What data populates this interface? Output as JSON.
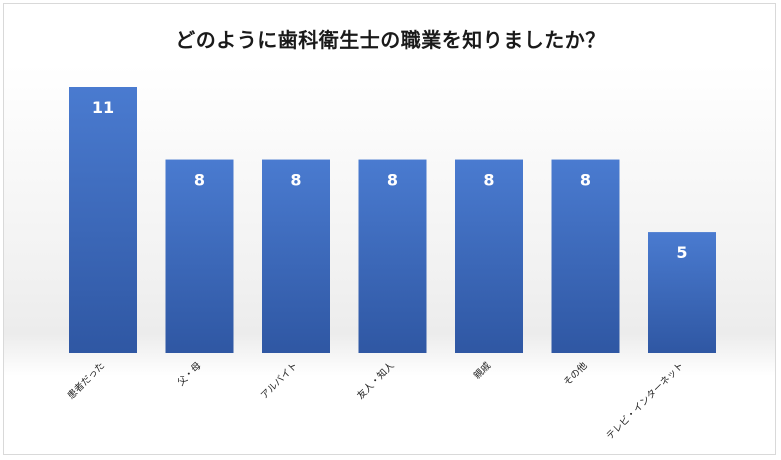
{
  "chart_data": {
    "type": "bar",
    "title": "どのように歯科衛生士の職業を知りましたか？",
    "categories": [
      "患者だった",
      "父・母",
      "アルバイト",
      "友人・知人",
      "親戚",
      "その他",
      "テレビ・インターネット"
    ],
    "values": [
      11,
      8,
      8,
      8,
      8,
      8,
      5
    ],
    "xlabel": "",
    "ylabel": "",
    "ylim": [
      0,
      11
    ],
    "grid": false,
    "legend": "none",
    "data_labels": true,
    "bar_color": "#4472c4",
    "bar_color_dark": "#2f57a3"
  }
}
